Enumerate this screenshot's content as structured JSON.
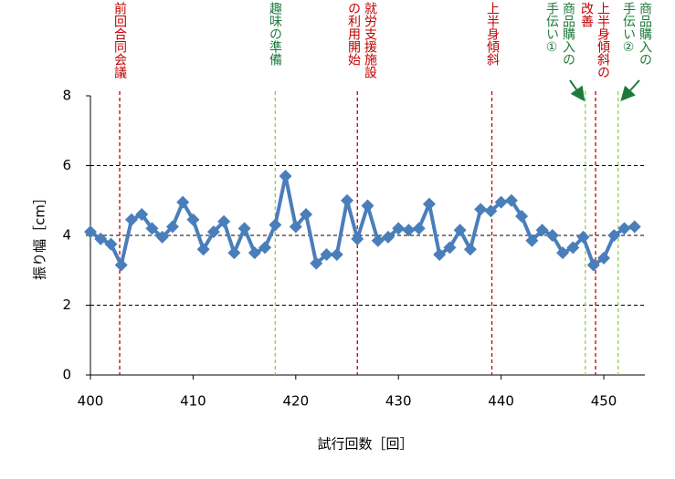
{
  "chart_data": {
    "type": "line",
    "x": [
      400,
      401,
      402,
      403,
      404,
      405,
      406,
      407,
      408,
      409,
      410,
      411,
      412,
      413,
      414,
      415,
      416,
      417,
      418,
      419,
      420,
      421,
      422,
      423,
      424,
      425,
      426,
      427,
      428,
      429,
      430,
      431,
      432,
      433,
      434,
      435,
      436,
      437,
      438,
      439,
      440,
      441,
      442,
      443,
      444,
      445,
      446,
      447,
      448,
      449,
      450,
      451,
      452,
      453
    ],
    "series": [
      {
        "color": "#4a7ebb",
        "values": [
          4.1,
          3.9,
          3.75,
          3.15,
          4.45,
          4.6,
          4.2,
          3.95,
          4.25,
          4.95,
          4.45,
          3.6,
          4.1,
          4.4,
          3.5,
          4.2,
          3.5,
          3.65,
          4.3,
          5.7,
          4.25,
          4.6,
          3.2,
          3.45,
          3.45,
          5.0,
          3.9,
          4.85,
          3.85,
          3.95,
          4.2,
          4.15,
          4.2,
          4.9,
          3.45,
          3.65,
          4.15,
          3.6,
          4.75,
          4.7,
          4.95,
          5.0,
          4.55,
          3.85,
          4.15,
          4.0,
          3.5,
          3.65,
          3.95,
          3.15,
          3.35,
          4.0,
          4.2,
          4.25
        ]
      }
    ],
    "xlim": [
      400,
      454
    ],
    "xticks": [
      400,
      410,
      420,
      430,
      440,
      450
    ],
    "ylim": [
      0,
      8
    ],
    "yticks": [
      0,
      2,
      4,
      6,
      8
    ],
    "x_label": "試行回数［回］",
    "y_label": "振り幅［cm］",
    "grid": true,
    "annotations": [
      {
        "text": "前回合同会議",
        "x": 402.85,
        "color": "#c00000"
      },
      {
        "text": "趣味の準備",
        "x": 418,
        "color": "#92d050"
      },
      {
        "text": "就労支援施設の利用開始",
        "x": 426,
        "color": "#c00000"
      },
      {
        "text": "上半身傾斜",
        "x": 439.1,
        "color": "#c00000"
      },
      {
        "text": "商品購入の手伝い①",
        "x": 448.2,
        "color": "#92d050"
      },
      {
        "text": "上半身傾斜の改善",
        "x": 449.2,
        "color": "#c00000"
      },
      {
        "text": "商品購入の手伝い②",
        "x": 451.4,
        "color": "#92d050"
      }
    ]
  }
}
